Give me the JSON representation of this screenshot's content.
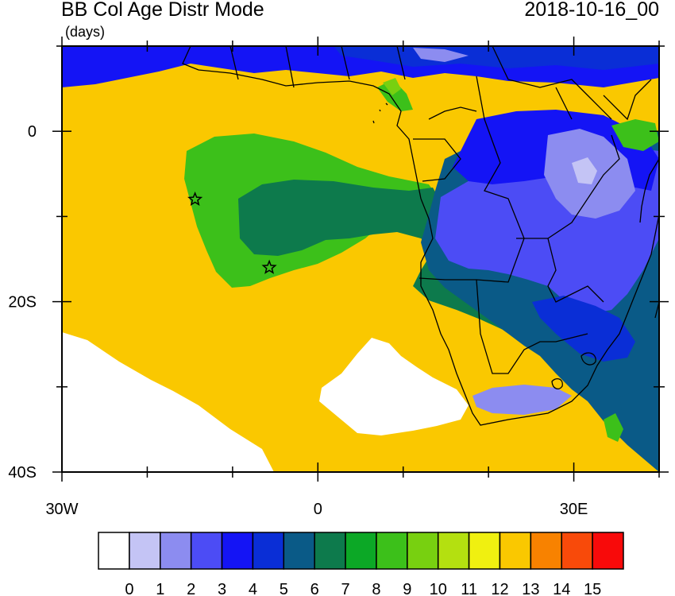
{
  "header": {
    "title": "BB Col Age Distr Mode",
    "units": "(days)",
    "date": "2018-10-16_00"
  },
  "chart_data": {
    "type": "heatmap",
    "title": "BB Col Age Distr Mode",
    "units": "(days)",
    "valid_time": "2018-10-16_00",
    "x_range": [
      -30,
      40
    ],
    "y_range": [
      -40,
      10
    ],
    "x_ticks": [
      {
        "value": -30,
        "label": "30W"
      },
      {
        "value": 0,
        "label": "0"
      },
      {
        "value": 30,
        "label": "30E"
      }
    ],
    "y_ticks": [
      {
        "value": 0,
        "label": "0"
      },
      {
        "value": -20,
        "label": "20S"
      },
      {
        "value": -40,
        "label": "40S"
      }
    ],
    "dominant_value_days": 12,
    "markers": [
      {
        "lon": -14.4,
        "lat": -8.0,
        "symbol": "star"
      },
      {
        "lon": -5.7,
        "lat": -16.0,
        "symbol": "star"
      }
    ],
    "colorbar": {
      "labels": [
        "0",
        "1",
        "2",
        "3",
        "4",
        "5",
        "6",
        "7",
        "8",
        "9",
        "10",
        "11",
        "12",
        "13",
        "14",
        "15"
      ],
      "colors": [
        "#ffffff",
        "#c4c4f5",
        "#8c8cf0",
        "#4c4cf5",
        "#1414f5",
        "#0a2ed6",
        "#0a5a87",
        "#0d7a4c",
        "#0ca826",
        "#3cc01a",
        "#78d010",
        "#b4e010",
        "#f0f010",
        "#fac800",
        "#f88200",
        "#f84a0a",
        "#f80a0a"
      ]
    }
  }
}
